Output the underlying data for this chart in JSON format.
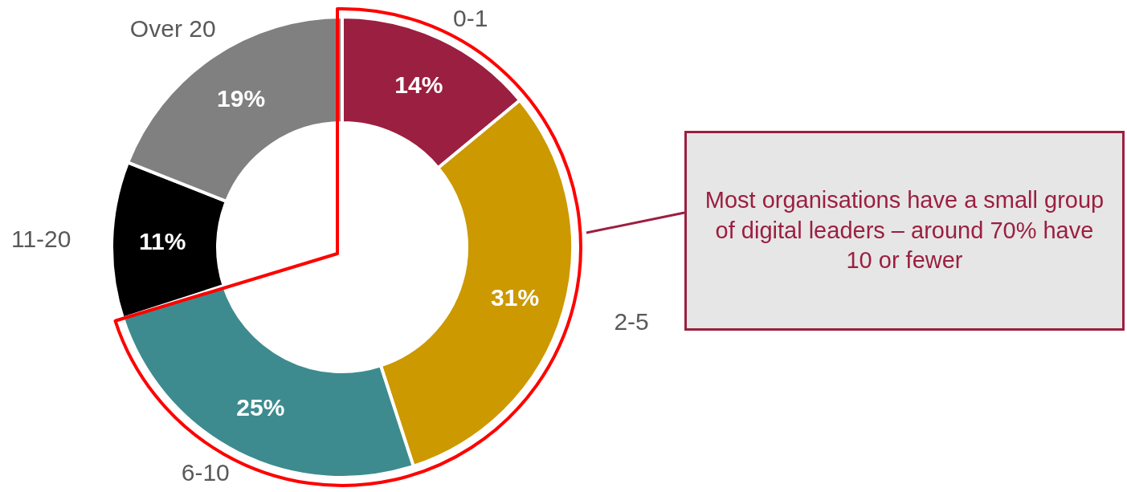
{
  "chart_data": {
    "type": "donut",
    "categories": [
      "0-1",
      "2-5",
      "6-10",
      "11-20",
      "Over 20"
    ],
    "values": [
      14,
      31,
      25,
      11,
      19
    ],
    "colors": [
      "#9b1f40",
      "#cc9900",
      "#3d8b8f",
      "#000000",
      "#808080"
    ],
    "value_labels": [
      "14%",
      "31%",
      "25%",
      "11%",
      "19%"
    ],
    "annotations": [
      "Most organisations have a small group of digital leaders – around 70% have 10 or fewer"
    ]
  }
}
